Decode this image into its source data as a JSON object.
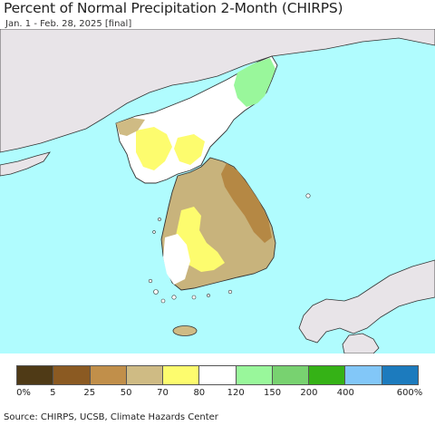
{
  "header": {
    "title": "Percent of Normal Precipitation 2-Month (CHIRPS)",
    "subtitle": "Jan. 1 - Feb. 28, 2025 [final]"
  },
  "legend": {
    "colors": [
      "#4f3a16",
      "#8b5a22",
      "#c18f4a",
      "#cfbb84",
      "#fdfc6e",
      "#ffffff",
      "#99f79b",
      "#78d270",
      "#35b216",
      "#82c7f8",
      "#1c7bbe"
    ],
    "ticks": [
      "0%",
      "5",
      "25",
      "50",
      "70",
      "80",
      "120",
      "150",
      "200",
      "400",
      "600%"
    ]
  },
  "footer": {
    "source": "Source: CHIRPS, UCSB, Climate Hazards Center"
  },
  "map_colors": {
    "sea": "#b0fcfe",
    "land_outside": "#e8e4e8",
    "border": "#333333"
  }
}
